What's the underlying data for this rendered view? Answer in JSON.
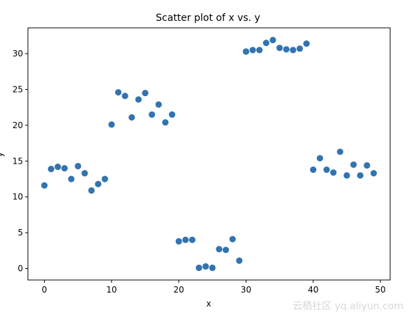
{
  "chart_data": {
    "type": "scatter",
    "title": "Scatter plot of x vs. y",
    "xlabel": "x",
    "ylabel": "y",
    "xlim": [
      -2.45,
      51.45
    ],
    "ylim": [
      -1.6,
      33.6
    ],
    "xticks": [
      0,
      10,
      20,
      30,
      40,
      50
    ],
    "yticks": [
      0,
      5,
      10,
      15,
      20,
      25,
      30
    ],
    "grid": false,
    "marker_color": "#3274b0",
    "x": [
      0,
      1,
      2,
      3,
      4,
      5,
      6,
      7,
      8,
      9,
      10,
      11,
      12,
      13,
      14,
      15,
      16,
      17,
      18,
      19,
      20,
      21,
      22,
      23,
      24,
      25,
      26,
      27,
      28,
      29,
      30,
      31,
      32,
      33,
      34,
      35,
      36,
      37,
      38,
      39,
      40,
      41,
      42,
      43,
      44,
      45,
      46,
      47,
      48,
      49
    ],
    "y": [
      11.6,
      13.9,
      14.2,
      14.0,
      12.5,
      14.3,
      13.3,
      10.9,
      11.8,
      12.5,
      20.1,
      24.6,
      24.1,
      21.1,
      23.6,
      24.5,
      21.5,
      22.9,
      20.4,
      21.5,
      3.8,
      4.0,
      4.0,
      0.1,
      0.3,
      0.1,
      2.7,
      2.6,
      4.1,
      1.1,
      30.3,
      30.5,
      30.5,
      31.5,
      31.9,
      30.8,
      30.6,
      30.5,
      30.7,
      31.4,
      13.8,
      15.4,
      13.8,
      13.4,
      16.3,
      13.0,
      14.5,
      13.0,
      14.4,
      13.3
    ]
  },
  "watermark": "云栖社区 yq.aliyun.com"
}
